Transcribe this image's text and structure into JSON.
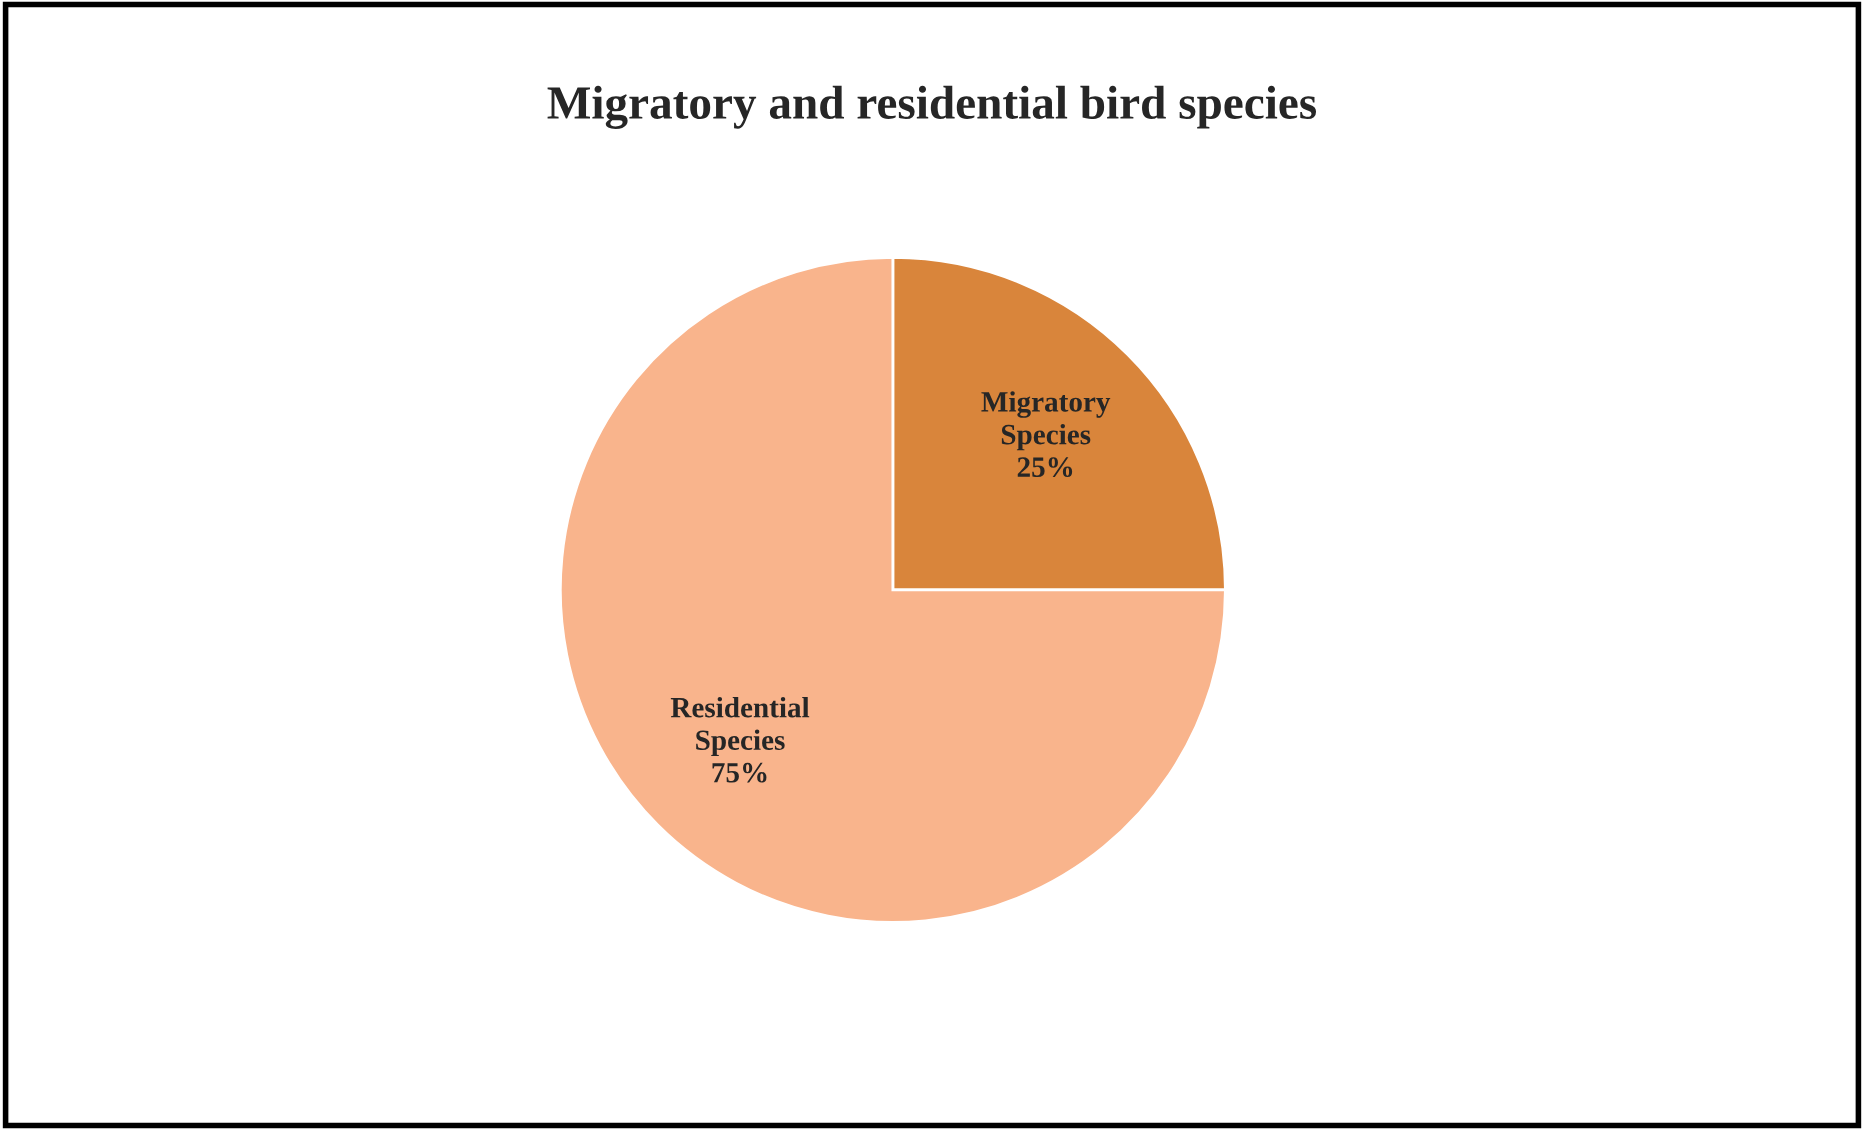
{
  "chart_data": {
    "type": "pie",
    "title": "Migratory and residential bird species",
    "categories": [
      "Migratory Species",
      "Residential Species"
    ],
    "values": [
      25,
      75
    ],
    "colors": [
      "#d9853b",
      "#f9b48c"
    ],
    "value_labels": [
      "25%",
      "75%"
    ],
    "legend": false
  }
}
